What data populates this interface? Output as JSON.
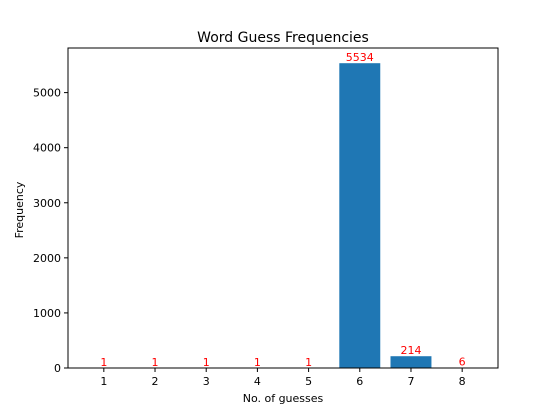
{
  "chart_data": {
    "type": "bar",
    "title": "Word Guess Frequencies",
    "xlabel": "No. of guesses",
    "ylabel": "Frequency",
    "categories": [
      "1",
      "2",
      "3",
      "4",
      "5",
      "6",
      "7",
      "8"
    ],
    "values": [
      1,
      1,
      1,
      1,
      1,
      5534,
      214,
      6
    ],
    "data_labels": [
      "1",
      "1",
      "1",
      "1",
      "1",
      "5534",
      "214",
      "6"
    ],
    "ylim": [
      0,
      5810
    ],
    "yticks": [
      0,
      1000,
      2000,
      3000,
      4000,
      5000
    ],
    "grid": false,
    "bar_color": "#1f77b4",
    "label_color": "#ff0000"
  }
}
